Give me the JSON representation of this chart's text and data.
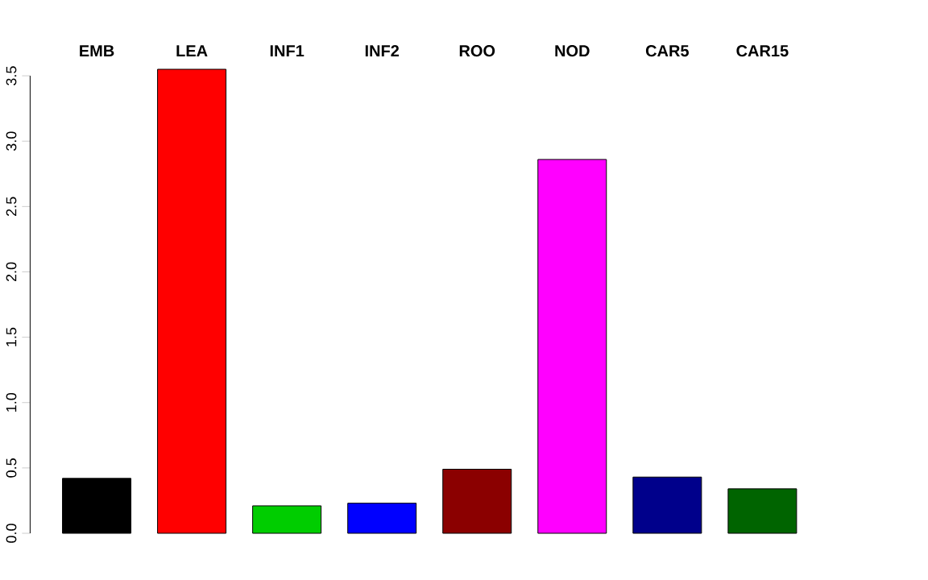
{
  "chart_data": {
    "type": "bar",
    "categories": [
      "EMB",
      "LEA",
      "INF1",
      "INF2",
      "ROO",
      "NOD",
      "CAR5",
      "CAR15"
    ],
    "values": [
      0.42,
      3.55,
      0.21,
      0.23,
      0.49,
      2.86,
      0.43,
      0.34
    ],
    "colors": [
      "#000000",
      "#ff0000",
      "#00cd00",
      "#0000ff",
      "#8b0000",
      "#ff00ff",
      "#00008b",
      "#006400"
    ],
    "ylim": [
      0,
      3.55
    ],
    "yticks": [
      {
        "value": 0,
        "label": "0.0"
      },
      0.5,
      {
        "value": 1,
        "label": "1.0"
      },
      1.5,
      {
        "value": 2,
        "label": "2.0"
      },
      2.5,
      {
        "value": 3,
        "label": "3.0"
      },
      3.5
    ]
  }
}
